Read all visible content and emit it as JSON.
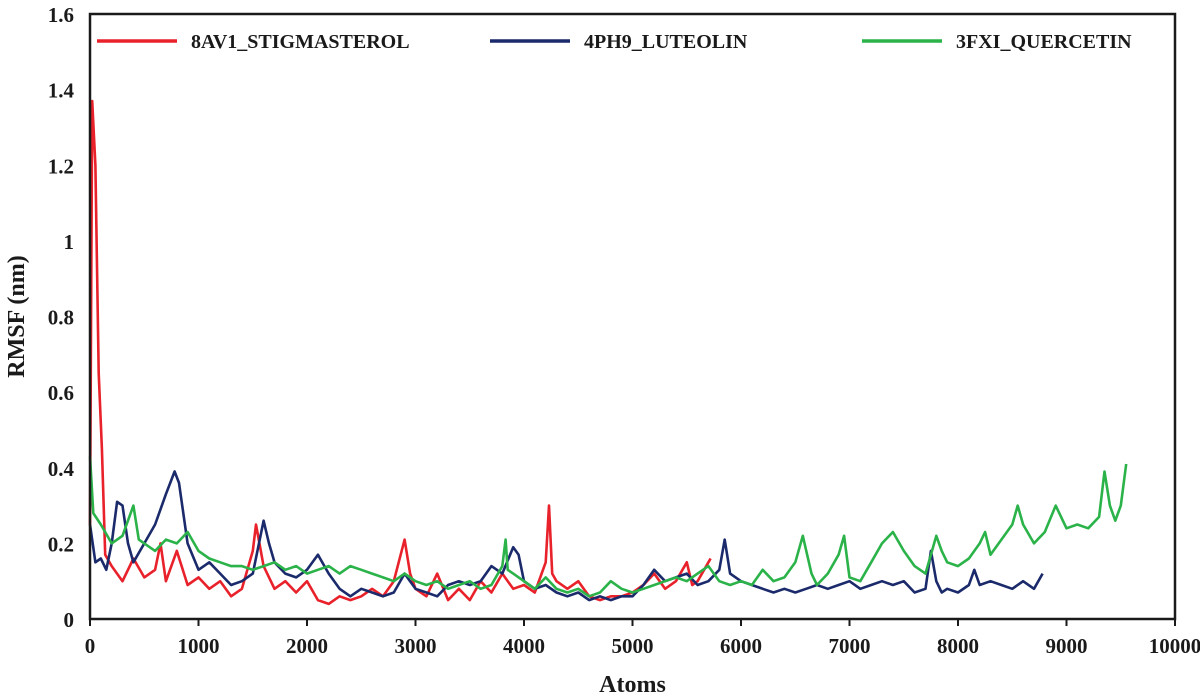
{
  "chart_data": {
    "type": "line",
    "xlabel": "Atoms",
    "ylabel": "RMSF (nm)",
    "xlim": [
      0,
      10000
    ],
    "ylim": [
      0,
      1.6
    ],
    "x_ticks": [
      0,
      1000,
      2000,
      3000,
      4000,
      5000,
      6000,
      7000,
      8000,
      9000,
      10000
    ],
    "y_ticks": [
      0,
      0.2,
      0.4,
      0.6,
      0.8,
      1,
      1.2,
      1.4,
      1.6
    ],
    "y_tick_labels": [
      "0",
      "0.2",
      "0.4",
      "0.6",
      "0.8",
      "1",
      "1.2",
      "1.4",
      "1.6"
    ],
    "grid": false,
    "legend_position": "top",
    "series": [
      {
        "name": "8AV1_STIGMASTEROL",
        "color": "#e8212b",
        "points": [
          [
            0,
            0.25
          ],
          [
            20,
            1.37
          ],
          [
            50,
            1.2
          ],
          [
            80,
            0.65
          ],
          [
            110,
            0.45
          ],
          [
            140,
            0.17
          ],
          [
            200,
            0.14
          ],
          [
            300,
            0.1
          ],
          [
            400,
            0.16
          ],
          [
            500,
            0.11
          ],
          [
            600,
            0.13
          ],
          [
            650,
            0.2
          ],
          [
            700,
            0.1
          ],
          [
            800,
            0.18
          ],
          [
            900,
            0.09
          ],
          [
            1000,
            0.11
          ],
          [
            1100,
            0.08
          ],
          [
            1200,
            0.1
          ],
          [
            1300,
            0.06
          ],
          [
            1400,
            0.08
          ],
          [
            1500,
            0.18
          ],
          [
            1530,
            0.25
          ],
          [
            1600,
            0.14
          ],
          [
            1700,
            0.08
          ],
          [
            1800,
            0.1
          ],
          [
            1900,
            0.07
          ],
          [
            2000,
            0.1
          ],
          [
            2100,
            0.05
          ],
          [
            2200,
            0.04
          ],
          [
            2300,
            0.06
          ],
          [
            2400,
            0.05
          ],
          [
            2500,
            0.06
          ],
          [
            2600,
            0.08
          ],
          [
            2700,
            0.06
          ],
          [
            2800,
            0.1
          ],
          [
            2900,
            0.21
          ],
          [
            2950,
            0.12
          ],
          [
            3000,
            0.08
          ],
          [
            3100,
            0.06
          ],
          [
            3200,
            0.12
          ],
          [
            3300,
            0.05
          ],
          [
            3400,
            0.08
          ],
          [
            3500,
            0.05
          ],
          [
            3600,
            0.1
          ],
          [
            3700,
            0.07
          ],
          [
            3800,
            0.12
          ],
          [
            3900,
            0.08
          ],
          [
            4000,
            0.09
          ],
          [
            4100,
            0.07
          ],
          [
            4200,
            0.15
          ],
          [
            4230,
            0.3
          ],
          [
            4260,
            0.12
          ],
          [
            4300,
            0.1
          ],
          [
            4400,
            0.08
          ],
          [
            4500,
            0.1
          ],
          [
            4600,
            0.06
          ],
          [
            4700,
            0.05
          ],
          [
            4800,
            0.06
          ],
          [
            4900,
            0.06
          ],
          [
            5000,
            0.07
          ],
          [
            5100,
            0.09
          ],
          [
            5200,
            0.12
          ],
          [
            5300,
            0.08
          ],
          [
            5400,
            0.1
          ],
          [
            5500,
            0.15
          ],
          [
            5550,
            0.09
          ],
          [
            5600,
            0.1
          ],
          [
            5700,
            0.15
          ],
          [
            5720,
            0.16
          ]
        ]
      },
      {
        "name": "4PH9_LUTEOLIN",
        "color": "#1b2a6b",
        "points": [
          [
            0,
            0.25
          ],
          [
            50,
            0.15
          ],
          [
            100,
            0.16
          ],
          [
            150,
            0.13
          ],
          [
            200,
            0.2
          ],
          [
            250,
            0.31
          ],
          [
            300,
            0.3
          ],
          [
            350,
            0.2
          ],
          [
            400,
            0.15
          ],
          [
            500,
            0.2
          ],
          [
            600,
            0.25
          ],
          [
            700,
            0.33
          ],
          [
            780,
            0.39
          ],
          [
            820,
            0.36
          ],
          [
            900,
            0.2
          ],
          [
            1000,
            0.13
          ],
          [
            1100,
            0.15
          ],
          [
            1200,
            0.12
          ],
          [
            1300,
            0.09
          ],
          [
            1400,
            0.1
          ],
          [
            1500,
            0.12
          ],
          [
            1600,
            0.26
          ],
          [
            1650,
            0.2
          ],
          [
            1700,
            0.15
          ],
          [
            1800,
            0.12
          ],
          [
            1900,
            0.11
          ],
          [
            2000,
            0.13
          ],
          [
            2100,
            0.17
          ],
          [
            2200,
            0.12
          ],
          [
            2300,
            0.08
          ],
          [
            2400,
            0.06
          ],
          [
            2500,
            0.08
          ],
          [
            2600,
            0.07
          ],
          [
            2700,
            0.06
          ],
          [
            2800,
            0.07
          ],
          [
            2900,
            0.12
          ],
          [
            3000,
            0.08
          ],
          [
            3100,
            0.07
          ],
          [
            3200,
            0.06
          ],
          [
            3300,
            0.09
          ],
          [
            3400,
            0.1
          ],
          [
            3500,
            0.09
          ],
          [
            3600,
            0.1
          ],
          [
            3700,
            0.14
          ],
          [
            3800,
            0.12
          ],
          [
            3900,
            0.19
          ],
          [
            3950,
            0.17
          ],
          [
            4000,
            0.1
          ],
          [
            4100,
            0.08
          ],
          [
            4200,
            0.09
          ],
          [
            4300,
            0.07
          ],
          [
            4400,
            0.06
          ],
          [
            4500,
            0.07
          ],
          [
            4600,
            0.05
          ],
          [
            4700,
            0.06
          ],
          [
            4800,
            0.05
          ],
          [
            4900,
            0.06
          ],
          [
            5000,
            0.06
          ],
          [
            5100,
            0.09
          ],
          [
            5200,
            0.13
          ],
          [
            5300,
            0.1
          ],
          [
            5400,
            0.11
          ],
          [
            5500,
            0.12
          ],
          [
            5600,
            0.09
          ],
          [
            5700,
            0.1
          ],
          [
            5800,
            0.13
          ],
          [
            5850,
            0.21
          ],
          [
            5900,
            0.12
          ],
          [
            6000,
            0.1
          ],
          [
            6100,
            0.09
          ],
          [
            6200,
            0.08
          ],
          [
            6300,
            0.07
          ],
          [
            6400,
            0.08
          ],
          [
            6500,
            0.07
          ],
          [
            6600,
            0.08
          ],
          [
            6700,
            0.09
          ],
          [
            6800,
            0.08
          ],
          [
            6900,
            0.09
          ],
          [
            7000,
            0.1
          ],
          [
            7100,
            0.08
          ],
          [
            7200,
            0.09
          ],
          [
            7300,
            0.1
          ],
          [
            7400,
            0.09
          ],
          [
            7500,
            0.1
          ],
          [
            7600,
            0.07
          ],
          [
            7700,
            0.08
          ],
          [
            7750,
            0.18
          ],
          [
            7800,
            0.1
          ],
          [
            7850,
            0.07
          ],
          [
            7900,
            0.08
          ],
          [
            8000,
            0.07
          ],
          [
            8100,
            0.09
          ],
          [
            8150,
            0.13
          ],
          [
            8200,
            0.09
          ],
          [
            8300,
            0.1
          ],
          [
            8400,
            0.09
          ],
          [
            8500,
            0.08
          ],
          [
            8600,
            0.1
          ],
          [
            8700,
            0.08
          ],
          [
            8780,
            0.12
          ]
        ]
      },
      {
        "name": "3FXI_QUERCETIN",
        "color": "#2bb34a",
        "points": [
          [
            0,
            0.43
          ],
          [
            30,
            0.28
          ],
          [
            100,
            0.25
          ],
          [
            200,
            0.2
          ],
          [
            300,
            0.22
          ],
          [
            400,
            0.3
          ],
          [
            450,
            0.21
          ],
          [
            500,
            0.2
          ],
          [
            600,
            0.18
          ],
          [
            700,
            0.21
          ],
          [
            800,
            0.2
          ],
          [
            900,
            0.23
          ],
          [
            1000,
            0.18
          ],
          [
            1100,
            0.16
          ],
          [
            1200,
            0.15
          ],
          [
            1300,
            0.14
          ],
          [
            1400,
            0.14
          ],
          [
            1500,
            0.13
          ],
          [
            1600,
            0.14
          ],
          [
            1700,
            0.15
          ],
          [
            1800,
            0.13
          ],
          [
            1900,
            0.14
          ],
          [
            2000,
            0.12
          ],
          [
            2100,
            0.13
          ],
          [
            2200,
            0.14
          ],
          [
            2300,
            0.12
          ],
          [
            2400,
            0.14
          ],
          [
            2500,
            0.13
          ],
          [
            2600,
            0.12
          ],
          [
            2700,
            0.11
          ],
          [
            2800,
            0.1
          ],
          [
            2900,
            0.12
          ],
          [
            3000,
            0.1
          ],
          [
            3100,
            0.09
          ],
          [
            3200,
            0.1
          ],
          [
            3300,
            0.08
          ],
          [
            3400,
            0.09
          ],
          [
            3500,
            0.1
          ],
          [
            3600,
            0.08
          ],
          [
            3700,
            0.09
          ],
          [
            3800,
            0.14
          ],
          [
            3830,
            0.21
          ],
          [
            3850,
            0.13
          ],
          [
            3900,
            0.12
          ],
          [
            4000,
            0.1
          ],
          [
            4100,
            0.08
          ],
          [
            4200,
            0.11
          ],
          [
            4300,
            0.08
          ],
          [
            4400,
            0.07
          ],
          [
            4500,
            0.08
          ],
          [
            4600,
            0.06
          ],
          [
            4700,
            0.07
          ],
          [
            4800,
            0.1
          ],
          [
            4900,
            0.08
          ],
          [
            5000,
            0.07
          ],
          [
            5100,
            0.08
          ],
          [
            5200,
            0.09
          ],
          [
            5300,
            0.1
          ],
          [
            5400,
            0.11
          ],
          [
            5500,
            0.1
          ],
          [
            5600,
            0.12
          ],
          [
            5700,
            0.14
          ],
          [
            5800,
            0.1
          ],
          [
            5900,
            0.09
          ],
          [
            6000,
            0.1
          ],
          [
            6100,
            0.09
          ],
          [
            6200,
            0.13
          ],
          [
            6300,
            0.1
          ],
          [
            6400,
            0.11
          ],
          [
            6500,
            0.15
          ],
          [
            6570,
            0.22
          ],
          [
            6650,
            0.12
          ],
          [
            6700,
            0.09
          ],
          [
            6800,
            0.12
          ],
          [
            6900,
            0.17
          ],
          [
            6950,
            0.22
          ],
          [
            7000,
            0.11
          ],
          [
            7100,
            0.1
          ],
          [
            7200,
            0.15
          ],
          [
            7300,
            0.2
          ],
          [
            7400,
            0.23
          ],
          [
            7500,
            0.18
          ],
          [
            7600,
            0.14
          ],
          [
            7700,
            0.12
          ],
          [
            7800,
            0.22
          ],
          [
            7850,
            0.18
          ],
          [
            7900,
            0.15
          ],
          [
            8000,
            0.14
          ],
          [
            8100,
            0.16
          ],
          [
            8200,
            0.2
          ],
          [
            8250,
            0.23
          ],
          [
            8300,
            0.17
          ],
          [
            8400,
            0.21
          ],
          [
            8500,
            0.25
          ],
          [
            8550,
            0.3
          ],
          [
            8600,
            0.25
          ],
          [
            8700,
            0.2
          ],
          [
            8800,
            0.23
          ],
          [
            8900,
            0.3
          ],
          [
            9000,
            0.24
          ],
          [
            9100,
            0.25
          ],
          [
            9200,
            0.24
          ],
          [
            9300,
            0.27
          ],
          [
            9350,
            0.39
          ],
          [
            9400,
            0.3
          ],
          [
            9450,
            0.26
          ],
          [
            9500,
            0.3
          ],
          [
            9550,
            0.41
          ]
        ]
      }
    ]
  }
}
